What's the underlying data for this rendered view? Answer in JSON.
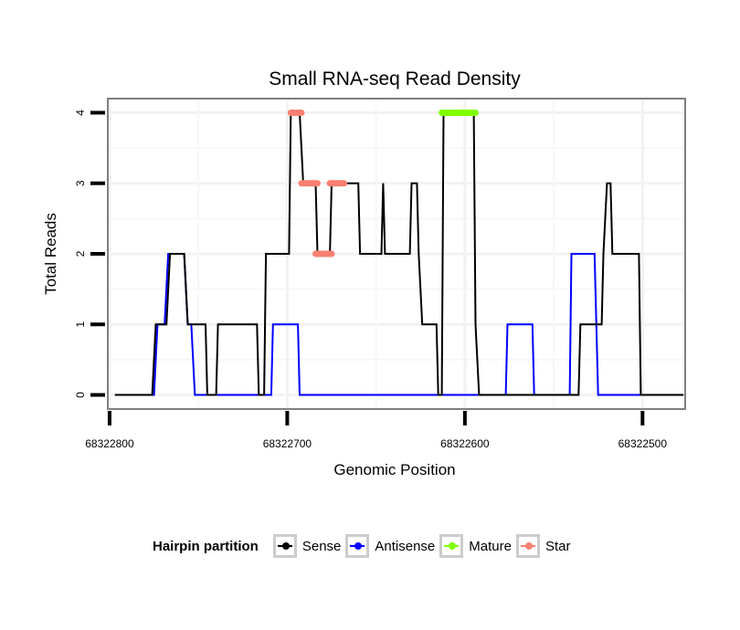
{
  "chart_data": {
    "type": "line",
    "title": "Small RNA-seq Read Density",
    "xlabel": "Genomic Position",
    "ylabel": "Total Reads",
    "x_reversed": true,
    "xlim": [
      68322801,
      68322476
    ],
    "ylim": [
      -0.2,
      4.2
    ],
    "x_ticks": [
      68322800,
      68322700,
      68322600,
      68322500
    ],
    "x_tick_labels": [
      "68322800",
      "68322700",
      "68322600",
      "68322500"
    ],
    "y_ticks": [
      0,
      1,
      2,
      3,
      4
    ],
    "y_tick_labels": [
      "0",
      "1",
      "2",
      "3",
      "4"
    ],
    "grid": true,
    "legend": {
      "title": "Hairpin partition",
      "position": "bottom",
      "entries": [
        {
          "label": "Sense",
          "color": "#000000"
        },
        {
          "label": "Antisense",
          "color": "#0000ff"
        },
        {
          "label": "Mature",
          "color": "#7fff00"
        },
        {
          "label": "Star",
          "color": "#fa8072"
        }
      ]
    },
    "series": [
      {
        "name": "Sense",
        "color": "#000000",
        "x": [
          68322797,
          68322776,
          68322774,
          68322768,
          68322766,
          68322758,
          68322756,
          68322746,
          68322745,
          68322740,
          68322739,
          68322717,
          68322716,
          68322713,
          68322712,
          68322699,
          68322698,
          68322693,
          68322691,
          68322684,
          68322683,
          68322676,
          68322675,
          68322660,
          68322659,
          68322647,
          68322646,
          68322645,
          68322631,
          68322630,
          68322627,
          68322626,
          68322624,
          68322616,
          68322615,
          68322613,
          68322612,
          68322595,
          68322594,
          68322592,
          68322536,
          68322535,
          68322523,
          68322522,
          68322520,
          68322518,
          68322517,
          68322502,
          68322501,
          68322477
        ],
        "y": [
          0,
          0,
          1,
          1,
          2,
          2,
          1,
          1,
          0,
          0,
          1,
          1,
          0,
          0,
          2,
          2,
          4,
          4,
          3,
          3,
          2,
          2,
          3,
          3,
          2,
          2,
          3,
          2,
          2,
          3,
          3,
          2,
          1,
          1,
          0,
          0,
          4,
          4,
          1,
          0,
          0,
          1,
          1,
          2,
          3,
          3,
          2,
          2,
          0,
          0
        ]
      },
      {
        "name": "Antisense",
        "color": "#0000ff",
        "x": [
          68322797,
          68322775,
          68322773,
          68322769,
          68322767,
          68322758,
          68322756,
          68322754,
          68322752,
          68322709,
          68322708,
          68322694,
          68322693,
          68322577,
          68322576,
          68322562,
          68322561,
          68322541,
          68322540,
          68322527,
          68322525,
          68322477
        ],
        "y": [
          0,
          0,
          1,
          1,
          2,
          2,
          1,
          1,
          0,
          0,
          1,
          1,
          0,
          0,
          1,
          1,
          0,
          0,
          2,
          2,
          0,
          0
        ]
      }
    ],
    "segments": [
      {
        "name": "Star",
        "color": "#fa8072",
        "x_start": 68322698,
        "x_end": 68322692,
        "y": 4
      },
      {
        "name": "Star",
        "color": "#fa8072",
        "x_start": 68322692,
        "x_end": 68322683,
        "y": 3
      },
      {
        "name": "Star",
        "color": "#fa8072",
        "x_start": 68322684,
        "x_end": 68322675,
        "y": 2
      },
      {
        "name": "Star",
        "color": "#fa8072",
        "x_start": 68322676,
        "x_end": 68322668,
        "y": 3
      },
      {
        "name": "Mature",
        "color": "#7fff00",
        "x_start": 68322613,
        "x_end": 68322594,
        "y": 4
      }
    ]
  }
}
